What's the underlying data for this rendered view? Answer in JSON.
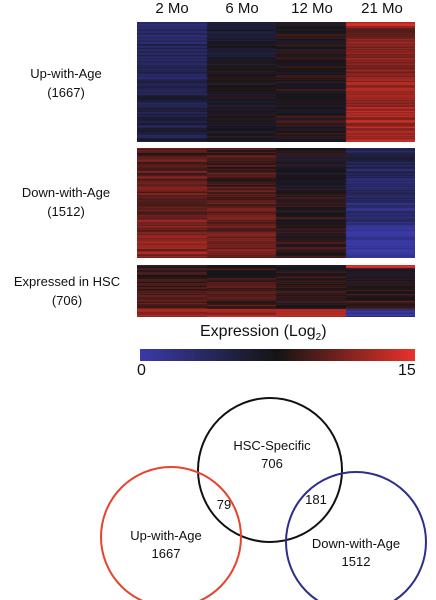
{
  "heatmap": {
    "columns": [
      "2 Mo",
      "6 Mo",
      "12 Mo",
      "21 Mo"
    ],
    "groups": [
      {
        "name": "Up-with-Age",
        "count": "(1667)"
      },
      {
        "name": "Down-with-Age",
        "count": "(1512)"
      },
      {
        "name": "Expressed in HSC",
        "count": "(706)"
      }
    ],
    "legend": {
      "title": "Expression (Log",
      "subscript": "2",
      "title_end": ")",
      "min": "0",
      "max": "15"
    },
    "colors": {
      "low": "#3a3aa8",
      "mid": "#141414",
      "high": "#e8322a"
    }
  },
  "venn": {
    "sets": [
      {
        "name": "HSC-Specific",
        "count": "706",
        "color": "#111111"
      },
      {
        "name": "Up-with-Age",
        "count": "1667",
        "color": "#e8432e"
      },
      {
        "name": "Down-with-Age",
        "count": "1512",
        "color": "#2e2e8c"
      }
    ],
    "overlaps": {
      "hsc_up": "79",
      "hsc_down": "181"
    }
  }
}
